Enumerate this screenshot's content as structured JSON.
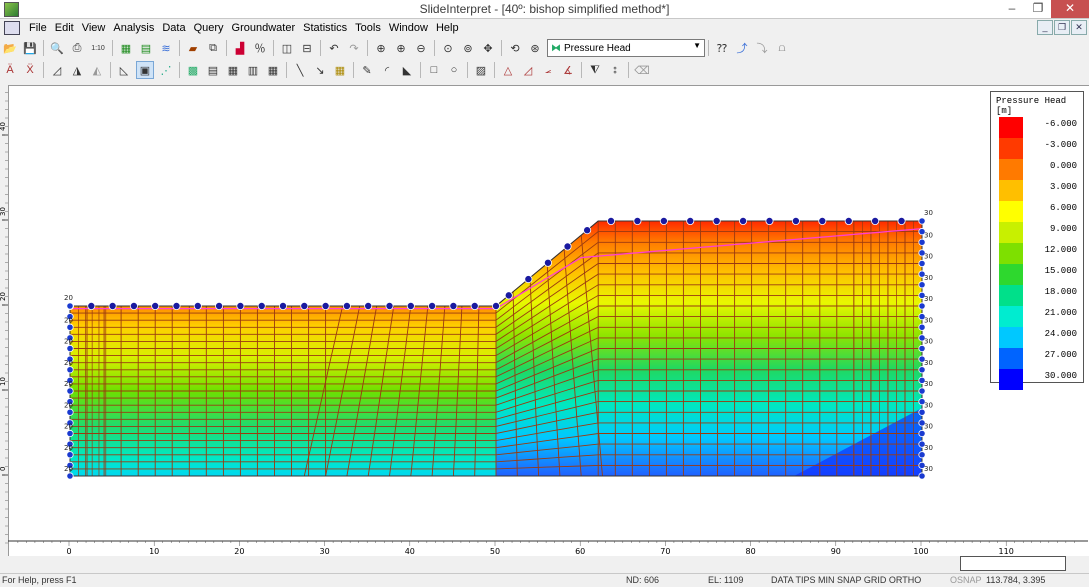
{
  "window": {
    "title": "SlideInterpret - [40º: bishop simplified method*]"
  },
  "menu": [
    "File",
    "Edit",
    "View",
    "Analysis",
    "Data",
    "Query",
    "Groundwater",
    "Statistics",
    "Tools",
    "Window",
    "Help"
  ],
  "toolbar": {
    "data_dropdown": "Pressure Head",
    "zoom_label": "1:10"
  },
  "legend": {
    "title": "Pressure Head",
    "unit": "[m]",
    "entries": [
      {
        "value": "-6.000",
        "color": "#ff0000"
      },
      {
        "value": "-3.000",
        "color": "#ff3a00"
      },
      {
        "value": "0.000",
        "color": "#ff7a00"
      },
      {
        "value": "3.000",
        "color": "#ffbf00"
      },
      {
        "value": "6.000",
        "color": "#ffff00"
      },
      {
        "value": "9.000",
        "color": "#c8f000"
      },
      {
        "value": "12.000",
        "color": "#7ee000"
      },
      {
        "value": "15.000",
        "color": "#2ed82e"
      },
      {
        "value": "18.000",
        "color": "#00e08a"
      },
      {
        "value": "21.000",
        "color": "#00ecd0"
      },
      {
        "value": "24.000",
        "color": "#00c8ff"
      },
      {
        "value": "27.000",
        "color": "#0064ff"
      },
      {
        "value": "30.000",
        "color": "#0000ff"
      }
    ]
  },
  "axes": {
    "x_ticks": [
      "0",
      "10",
      "20",
      "30",
      "40",
      "50",
      "60",
      "70",
      "80",
      "90",
      "100",
      "110"
    ],
    "y_ticks": [
      "0",
      "10",
      "20",
      "30",
      "40"
    ]
  },
  "boundary": {
    "left_head": "20",
    "right_head": "30"
  },
  "status": {
    "help": "For Help, press F1",
    "nd": "ND: 606",
    "el": "EL: 1109",
    "flags": "DATA TIPS MIN  SNAP  GRID  ORTHO",
    "osnap": "OSNAP",
    "coords": "113.784, 3.395"
  }
}
